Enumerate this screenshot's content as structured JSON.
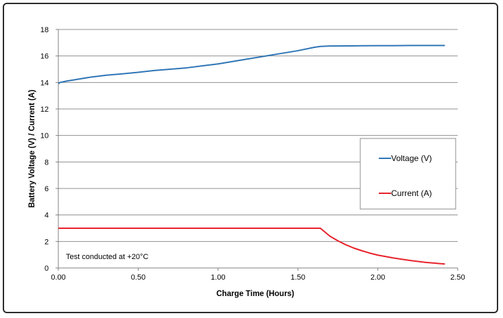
{
  "chart_data": {
    "type": "line",
    "xlabel": "Charge Time (Hours)",
    "ylabel": "Battery Voltage (V) / Current (A)",
    "xlim": [
      0,
      2.5
    ],
    "ylim": [
      0,
      18
    ],
    "x_ticks": [
      "0.00",
      "0.50",
      "1.00",
      "1.50",
      "2.00",
      "2.50"
    ],
    "y_ticks": [
      "0",
      "2",
      "4",
      "6",
      "8",
      "10",
      "12",
      "14",
      "16",
      "18"
    ],
    "grid": "horizontal",
    "legend_position": "right",
    "annotation": "Test conducted at +20°C",
    "series": [
      {
        "name": "Voltage (V)",
        "color": "#2E75B6",
        "points": [
          [
            0.0,
            13.9
          ],
          [
            0.01,
            14.0
          ],
          [
            0.05,
            14.1
          ],
          [
            0.1,
            14.2
          ],
          [
            0.2,
            14.4
          ],
          [
            0.3,
            14.55
          ],
          [
            0.4,
            14.65
          ],
          [
            0.5,
            14.77
          ],
          [
            0.6,
            14.9
          ],
          [
            0.7,
            15.0
          ],
          [
            0.8,
            15.1
          ],
          [
            0.9,
            15.25
          ],
          [
            1.0,
            15.4
          ],
          [
            1.1,
            15.6
          ],
          [
            1.2,
            15.8
          ],
          [
            1.3,
            16.0
          ],
          [
            1.4,
            16.2
          ],
          [
            1.5,
            16.4
          ],
          [
            1.6,
            16.65
          ],
          [
            1.64,
            16.72
          ],
          [
            1.7,
            16.75
          ],
          [
            1.8,
            16.76
          ],
          [
            1.9,
            16.77
          ],
          [
            2.0,
            16.78
          ],
          [
            2.1,
            16.78
          ],
          [
            2.2,
            16.79
          ],
          [
            2.3,
            16.79
          ],
          [
            2.42,
            16.79
          ]
        ]
      },
      {
        "name": "Current (A)",
        "color": "#E8202A",
        "points": [
          [
            0.0,
            3.0
          ],
          [
            0.5,
            3.0
          ],
          [
            1.0,
            3.0
          ],
          [
            1.5,
            3.0
          ],
          [
            1.64,
            3.0
          ],
          [
            1.66,
            2.8
          ],
          [
            1.7,
            2.4
          ],
          [
            1.75,
            2.05
          ],
          [
            1.8,
            1.75
          ],
          [
            1.85,
            1.5
          ],
          [
            1.9,
            1.3
          ],
          [
            1.95,
            1.12
          ],
          [
            2.0,
            0.97
          ],
          [
            2.1,
            0.75
          ],
          [
            2.2,
            0.57
          ],
          [
            2.3,
            0.42
          ],
          [
            2.42,
            0.3
          ]
        ]
      }
    ]
  }
}
